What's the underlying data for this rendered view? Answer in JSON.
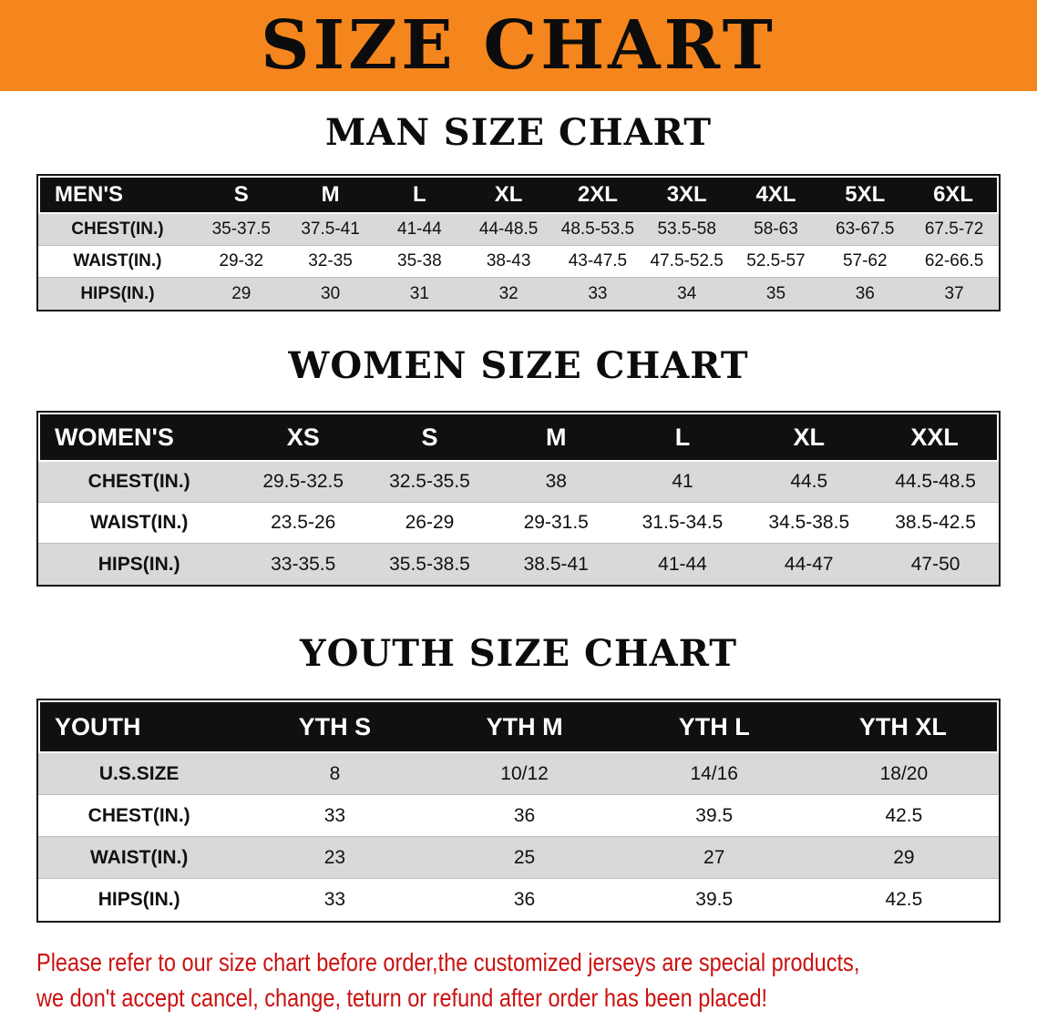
{
  "banner": {
    "title": "SIZE CHART",
    "bg_color": "#f5861d",
    "text_color": "#0c0c0c"
  },
  "theme": {
    "stripe_color": "#d9d9d9",
    "header_bg": "#101010",
    "header_text": "#ffffff",
    "border_color": "#161616"
  },
  "sections": {
    "men": {
      "heading": "MAN SIZE CHART",
      "table": {
        "header": [
          "MEN'S",
          "S",
          "M",
          "L",
          "XL",
          "2XL",
          "3XL",
          "4XL",
          "5XL",
          "6XL"
        ],
        "rows": [
          [
            "CHEST(IN.)",
            "35-37.5",
            "37.5-41",
            "41-44",
            "44-48.5",
            "48.5-53.5",
            "53.5-58",
            "58-63",
            "63-67.5",
            "67.5-72"
          ],
          [
            "WAIST(IN.)",
            "29-32",
            "32-35",
            "35-38",
            "38-43",
            "43-47.5",
            "47.5-52.5",
            "52.5-57",
            "57-62",
            "62-66.5"
          ],
          [
            "HIPS(IN.)",
            "29",
            "30",
            "31",
            "32",
            "33",
            "34",
            "35",
            "36",
            "37"
          ]
        ]
      }
    },
    "women": {
      "heading": "WOMEN SIZE CHART",
      "table": {
        "header": [
          "WOMEN'S",
          "XS",
          "S",
          "M",
          "L",
          "XL",
          "XXL"
        ],
        "rows": [
          [
            "CHEST(IN.)",
            "29.5-32.5",
            "32.5-35.5",
            "38",
            "41",
            "44.5",
            "44.5-48.5"
          ],
          [
            "WAIST(IN.)",
            "23.5-26",
            "26-29",
            "29-31.5",
            "31.5-34.5",
            "34.5-38.5",
            "38.5-42.5"
          ],
          [
            "HIPS(IN.)",
            "33-35.5",
            "35.5-38.5",
            "38.5-41",
            "41-44",
            "44-47",
            "47-50"
          ]
        ]
      }
    },
    "youth": {
      "heading": "YOUTH SIZE CHART",
      "table": {
        "header": [
          "YOUTH",
          "YTH S",
          "YTH M",
          "YTH L",
          "YTH XL"
        ],
        "rows": [
          [
            "U.S.SIZE",
            "8",
            "10/12",
            "14/16",
            "18/20"
          ],
          [
            "CHEST(IN.)",
            "33",
            "36",
            "39.5",
            "42.5"
          ],
          [
            "WAIST(IN.)",
            "23",
            "25",
            "27",
            "29"
          ],
          [
            "HIPS(IN.)",
            "33",
            "36",
            "39.5",
            "42.5"
          ]
        ]
      }
    }
  },
  "footer": {
    "line1": "Please refer to our size chart before order,the customized jerseys are special products,",
    "line2": "we don't accept cancel, change, teturn or refund after order has been placed!",
    "text_color": "#cc1010"
  }
}
